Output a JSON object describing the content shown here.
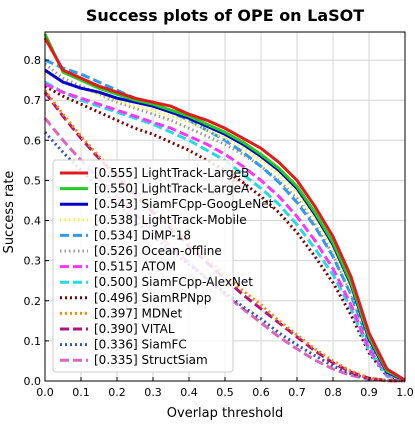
{
  "chart_data": {
    "type": "line",
    "title": "Success plots of OPE on LaSOT",
    "xlabel": "Overlap threshold",
    "ylabel": "Success rate",
    "xlim": [
      0.0,
      1.0
    ],
    "ylim": [
      0.0,
      0.87
    ],
    "xticks": [
      "0.0",
      "0.1",
      "0.2",
      "0.3",
      "0.4",
      "0.5",
      "0.6",
      "0.7",
      "0.8",
      "0.9",
      "1.0"
    ],
    "yticks": [
      "0.0",
      "0.1",
      "0.2",
      "0.3",
      "0.4",
      "0.5",
      "0.6",
      "0.7",
      "0.8"
    ],
    "grid": true,
    "legend_position": "lower-left",
    "x": [
      0.0,
      0.05,
      0.1,
      0.15,
      0.2,
      0.25,
      0.3,
      0.35,
      0.4,
      0.45,
      0.5,
      0.55,
      0.6,
      0.65,
      0.7,
      0.75,
      0.8,
      0.85,
      0.9,
      0.95,
      1.0
    ],
    "series": [
      {
        "name": "[0.555] LightTrack-LargeB",
        "color": "#e31a1c",
        "dash": "solid",
        "width": 3,
        "values": [
          0.855,
          0.775,
          0.755,
          0.735,
          0.72,
          0.705,
          0.695,
          0.685,
          0.665,
          0.65,
          0.63,
          0.605,
          0.58,
          0.545,
          0.5,
          0.435,
          0.36,
          0.26,
          0.12,
          0.03,
          0.002
        ]
      },
      {
        "name": "[0.550] LightTrack-LargeA",
        "color": "#22cc22",
        "dash": "solid",
        "width": 3,
        "values": [
          0.865,
          0.77,
          0.75,
          0.73,
          0.715,
          0.7,
          0.69,
          0.675,
          0.66,
          0.64,
          0.62,
          0.595,
          0.565,
          0.53,
          0.485,
          0.42,
          0.345,
          0.245,
          0.11,
          0.025,
          0.002
        ]
      },
      {
        "name": "[0.543] SiamFCpp-GoogLeNet",
        "color": "#0000cc",
        "dash": "solid",
        "width": 3,
        "values": [
          0.775,
          0.745,
          0.73,
          0.72,
          0.705,
          0.695,
          0.685,
          0.67,
          0.655,
          0.635,
          0.615,
          0.59,
          0.56,
          0.525,
          0.48,
          0.415,
          0.34,
          0.24,
          0.105,
          0.022,
          0.002
        ]
      },
      {
        "name": "[0.538] LightTrack-Mobile",
        "color": "#ffee33",
        "dash": "1.5 3",
        "width": 3,
        "values": [
          0.77,
          0.745,
          0.73,
          0.715,
          0.7,
          0.685,
          0.675,
          0.66,
          0.645,
          0.625,
          0.605,
          0.58,
          0.55,
          0.515,
          0.47,
          0.405,
          0.33,
          0.23,
          0.1,
          0.02,
          0.002
        ]
      },
      {
        "name": "[0.534] DiMP-18",
        "color": "#3399ee",
        "dash": "9 4",
        "width": 3,
        "values": [
          0.8,
          0.78,
          0.765,
          0.745,
          0.725,
          0.705,
          0.69,
          0.67,
          0.65,
          0.625,
          0.6,
          0.57,
          0.535,
          0.495,
          0.445,
          0.385,
          0.31,
          0.215,
          0.095,
          0.018,
          0.002
        ]
      },
      {
        "name": "[0.526] Ocean-offline",
        "color": "#999999",
        "dash": "1.5 3",
        "width": 3,
        "values": [
          0.79,
          0.755,
          0.735,
          0.715,
          0.695,
          0.68,
          0.665,
          0.65,
          0.63,
          0.61,
          0.59,
          0.565,
          0.535,
          0.5,
          0.455,
          0.39,
          0.315,
          0.22,
          0.095,
          0.018,
          0.002
        ]
      },
      {
        "name": "[0.515] ATOM",
        "color": "#ff33ff",
        "dash": "9 4",
        "width": 3,
        "values": [
          0.74,
          0.72,
          0.705,
          0.69,
          0.675,
          0.66,
          0.645,
          0.63,
          0.61,
          0.59,
          0.565,
          0.535,
          0.5,
          0.46,
          0.41,
          0.35,
          0.28,
          0.19,
          0.08,
          0.015,
          0.001
        ]
      },
      {
        "name": "[0.500] SiamFCpp-AlexNet",
        "color": "#22dddd",
        "dash": "9 4",
        "width": 3,
        "values": [
          0.745,
          0.72,
          0.7,
          0.685,
          0.67,
          0.655,
          0.64,
          0.62,
          0.6,
          0.575,
          0.55,
          0.515,
          0.48,
          0.44,
          0.39,
          0.33,
          0.265,
          0.18,
          0.075,
          0.012,
          0.001
        ]
      },
      {
        "name": "[0.496] SiamRPNpp",
        "color": "#800000",
        "dash": "2 3",
        "width": 3,
        "values": [
          0.735,
          0.71,
          0.69,
          0.67,
          0.65,
          0.63,
          0.615,
          0.595,
          0.575,
          0.55,
          0.525,
          0.495,
          0.46,
          0.42,
          0.37,
          0.31,
          0.245,
          0.165,
          0.07,
          0.012,
          0.001
        ]
      },
      {
        "name": "[0.397] MDNet",
        "color": "#ff8800",
        "dash": "2 3",
        "width": 3,
        "values": [
          0.725,
          0.665,
          0.61,
          0.56,
          0.515,
          0.475,
          0.43,
          0.39,
          0.345,
          0.305,
          0.265,
          0.225,
          0.19,
          0.15,
          0.115,
          0.08,
          0.05,
          0.025,
          0.008,
          0.001,
          0.0
        ]
      },
      {
        "name": "[0.390] VITAL",
        "color": "#b01480",
        "dash": "9 4",
        "width": 3,
        "values": [
          0.72,
          0.66,
          0.605,
          0.555,
          0.51,
          0.465,
          0.42,
          0.38,
          0.335,
          0.295,
          0.255,
          0.215,
          0.18,
          0.145,
          0.11,
          0.075,
          0.045,
          0.022,
          0.007,
          0.001,
          0.0
        ]
      },
      {
        "name": "[0.336] SiamFC",
        "color": "#3355bb",
        "dash": "2 3",
        "width": 3,
        "values": [
          0.62,
          0.57,
          0.525,
          0.48,
          0.44,
          0.4,
          0.36,
          0.325,
          0.29,
          0.255,
          0.22,
          0.185,
          0.155,
          0.12,
          0.09,
          0.063,
          0.038,
          0.018,
          0.006,
          0.001,
          0.0
        ]
      },
      {
        "name": "[0.335] StructSiam",
        "color": "#dd66bb",
        "dash": "9 4",
        "width": 3,
        "values": [
          0.655,
          0.6,
          0.55,
          0.505,
          0.46,
          0.415,
          0.375,
          0.335,
          0.295,
          0.255,
          0.215,
          0.18,
          0.145,
          0.11,
          0.08,
          0.052,
          0.03,
          0.014,
          0.004,
          0.001,
          0.0
        ]
      }
    ]
  }
}
